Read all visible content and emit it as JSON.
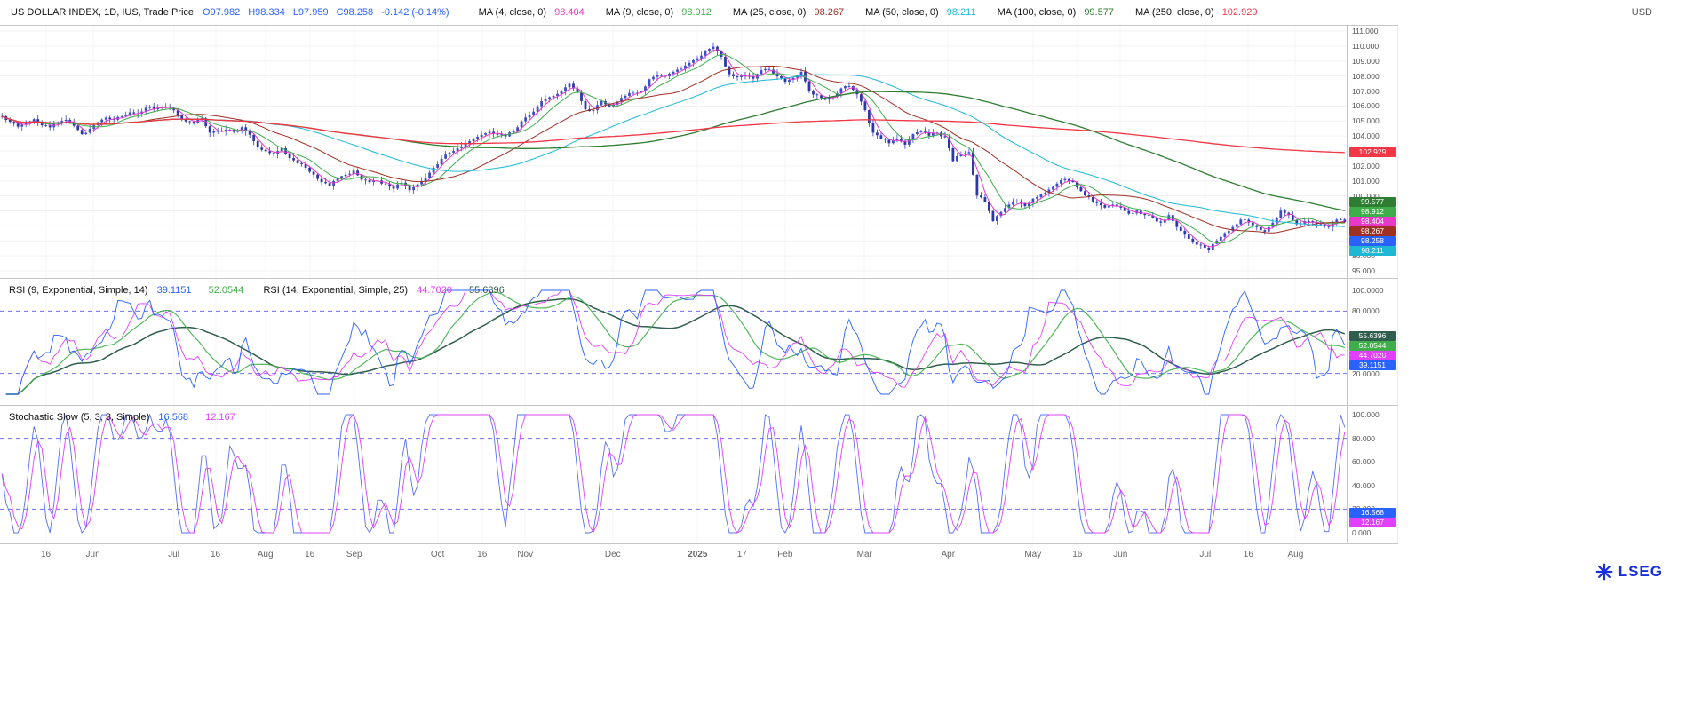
{
  "header": {
    "instrument": "US DOLLAR INDEX, 1D, IUS, Trade Price",
    "o": "O97.982",
    "h": "H98.334",
    "l": "L97.959",
    "c": "C98.258",
    "change": "-0.142 (-0.14%)",
    "ohlc_color": "#2962ff",
    "mas": [
      {
        "label": "MA (4, close, 0)",
        "value": "98.404",
        "color": "#e838c8"
      },
      {
        "label": "MA (9, close, 0)",
        "value": "98.912",
        "color": "#3fae4a"
      },
      {
        "label": "MA (25, close, 0)",
        "value": "98.267",
        "color": "#9e2f23"
      },
      {
        "label": "MA (50, close, 0)",
        "value": "98.211",
        "color": "#1fb8d4"
      },
      {
        "label": "MA (100, close, 0)",
        "value": "99.577",
        "color": "#2e7d32"
      },
      {
        "label": "MA (250, close, 0)",
        "value": "102.929",
        "color": "#f23645"
      }
    ],
    "currency": "USD"
  },
  "price_panel": {
    "y_ticks": [
      "111.000",
      "110.000",
      "109.000",
      "108.000",
      "107.000",
      "106.000",
      "105.000",
      "104.000",
      "103.000",
      "102.000",
      "101.000",
      "100.000",
      "99.000",
      "98.000",
      "97.000",
      "96.000",
      "95.000"
    ],
    "badges": [
      {
        "text": "102.929",
        "color": "#f23645",
        "name": "ma250-price-badge"
      },
      {
        "text": "99.577",
        "color": "#2e7d32",
        "name": "ma100-price-badge"
      },
      {
        "text": "98.912",
        "color": "#3fae4a",
        "name": "ma9-price-badge"
      },
      {
        "text": "98.404",
        "color": "#e838c8",
        "name": "ma4-price-badge"
      },
      {
        "text": "98.267",
        "color": "#9e2f23",
        "name": "ma25-price-badge"
      },
      {
        "text": "98.258",
        "color": "#2962ff",
        "name": "last-price-badge"
      },
      {
        "text": "98.211",
        "color": "#1fb8d4",
        "name": "ma50-price-badge"
      }
    ]
  },
  "rsi_panel": {
    "title1": "RSI (9, Exponential, Simple, 14)",
    "v1a": "39.1151",
    "v1b": "52.0544",
    "title2": "RSI (14, Exponential, Simple, 25)",
    "v2a": "44.7020",
    "v2b": "55.6396",
    "y_ticks": [
      "100.0000",
      "80.0000",
      "20.0000"
    ],
    "thresholds": [
      80,
      20
    ],
    "colors": {
      "rsi9": "#2962ff",
      "signal1": "#3fae4a",
      "rsi14": "#e040fb",
      "signal2": "#2f5d4e"
    },
    "badges": [
      {
        "text": "55.6396",
        "color": "#2f5d4e",
        "name": "rsi14-signal-badge"
      },
      {
        "text": "52.0544",
        "color": "#3fae4a",
        "name": "rsi9-signal-badge"
      },
      {
        "text": "44.7020",
        "color": "#e040fb",
        "name": "rsi14-badge"
      },
      {
        "text": "39.1151",
        "color": "#2962ff",
        "name": "rsi9-badge"
      }
    ]
  },
  "stoch_panel": {
    "title": "Stochastic Slow (5, 3, 3, Simple)",
    "v1": "16.568",
    "v2": "12.167",
    "y_ticks": [
      "100.000",
      "80.000",
      "60.000",
      "40.000",
      "20.000",
      "0.000"
    ],
    "thresholds": [
      80,
      20
    ],
    "colors": {
      "k": "#5470f0",
      "d": "#e040fb"
    },
    "badges": [
      {
        "text": "16.568",
        "color": "#2962ff",
        "name": "stoch-k-badge"
      },
      {
        "text": "12.167",
        "color": "#e040fb",
        "name": "stoch-d-badge"
      }
    ]
  },
  "x_axis": {
    "labels": [
      {
        "text": "16",
        "pos": 0.034
      },
      {
        "text": "Jun",
        "pos": 0.069
      },
      {
        "text": "Jul",
        "pos": 0.129
      },
      {
        "text": "16",
        "pos": 0.16
      },
      {
        "text": "Aug",
        "pos": 0.197
      },
      {
        "text": "16",
        "pos": 0.23
      },
      {
        "text": "Sep",
        "pos": 0.263
      },
      {
        "text": "Oct",
        "pos": 0.325
      },
      {
        "text": "16",
        "pos": 0.358
      },
      {
        "text": "Nov",
        "pos": 0.39
      },
      {
        "text": "Dec",
        "pos": 0.455
      },
      {
        "text": "2025",
        "pos": 0.518,
        "bold": true
      },
      {
        "text": "17",
        "pos": 0.551
      },
      {
        "text": "Feb",
        "pos": 0.583
      },
      {
        "text": "Mar",
        "pos": 0.642
      },
      {
        "text": "Apr",
        "pos": 0.704
      },
      {
        "text": "May",
        "pos": 0.767
      },
      {
        "text": "16",
        "pos": 0.8
      },
      {
        "text": "Jun",
        "pos": 0.832
      },
      {
        "text": "Jul",
        "pos": 0.895
      },
      {
        "text": "16",
        "pos": 0.927
      },
      {
        "text": "Aug",
        "pos": 0.962
      }
    ]
  },
  "footer": {
    "logo_text": "LSEG"
  },
  "chart_data": {
    "type": "candlestick",
    "title": "US DOLLAR INDEX, 1D, IUS, Trade Price",
    "timeframe": "1D",
    "x_span": "mid-May 2024 to mid-Aug 2025, daily bars",
    "ylim": [
      95,
      111
    ],
    "y_step": 1.0,
    "last_bar": {
      "open": 97.982,
      "high": 98.334,
      "low": 97.959,
      "close": 98.258,
      "change": -0.142,
      "change_pct": -0.14
    },
    "colors": {
      "candle_up": "#3d4ec9",
      "candle_down": "#2c37a8"
    },
    "closes": [
      105.32,
      104.95,
      104.62,
      104.85,
      105.12,
      104.72,
      104.58,
      104.92,
      105.08,
      104.68,
      104.12,
      104.48,
      104.92,
      105.22,
      105.08,
      105.32,
      105.58,
      105.48,
      105.88,
      105.78,
      105.92,
      105.88,
      105.42,
      104.98,
      104.88,
      105.18,
      104.22,
      104.32,
      104.42,
      104.28,
      104.58,
      104.08,
      103.22,
      102.98,
      102.78,
      103.18,
      102.52,
      102.18,
      101.88,
      101.42,
      100.92,
      100.68,
      101.18,
      101.42,
      101.68,
      101.08,
      100.92,
      101.02,
      100.78,
      100.48,
      100.88,
      100.38,
      100.78,
      101.22,
      101.88,
      102.48,
      102.88,
      103.18,
      103.48,
      103.78,
      104.08,
      104.28,
      104.08,
      103.98,
      104.32,
      104.98,
      105.42,
      105.98,
      106.48,
      106.68,
      106.98,
      107.48,
      106.88,
      105.78,
      105.72,
      106.32,
      105.98,
      106.28,
      106.68,
      106.88,
      106.98,
      107.78,
      108.08,
      107.98,
      108.28,
      108.48,
      108.88,
      109.18,
      109.68,
      109.96,
      109.28,
      108.12,
      107.92,
      108.02,
      107.82,
      108.38,
      108.42,
      107.98,
      107.62,
      107.88,
      108.28,
      106.98,
      106.72,
      106.42,
      106.62,
      107.18,
      107.32,
      106.78,
      105.72,
      104.22,
      103.82,
      103.52,
      103.82,
      103.42,
      104.12,
      104.32,
      104.02,
      104.22,
      103.92,
      102.32,
      102.82,
      102.92,
      100.02,
      99.62,
      98.32,
      98.92,
      99.42,
      99.62,
      99.32,
      99.82,
      100.12,
      100.42,
      100.82,
      101.12,
      100.92,
      100.32,
      99.92,
      99.52,
      99.22,
      99.42,
      99.22,
      98.82,
      99.02,
      98.72,
      98.52,
      98.22,
      98.72,
      97.92,
      97.42,
      96.92,
      96.72,
      96.42,
      97.02,
      97.52,
      97.92,
      98.42,
      98.22,
      97.92,
      97.62,
      98.22,
      99.02,
      98.72,
      98.12,
      98.32,
      98.22,
      98.12,
      97.92,
      98.42,
      98.26
    ],
    "moving_averages": [
      {
        "name": "MA (4, close, 0)",
        "period": 4,
        "value": 98.404,
        "color": "#e838c8"
      },
      {
        "name": "MA (9, close, 0)",
        "period": 9,
        "value": 98.912,
        "color": "#3fae4a"
      },
      {
        "name": "MA (25, close, 0)",
        "period": 25,
        "value": 98.267,
        "color": "#9e2f23"
      },
      {
        "name": "MA (50, close, 0)",
        "period": 50,
        "value": 98.211,
        "color": "#1fb8d4"
      },
      {
        "name": "MA (100, close, 0)",
        "period": 100,
        "value": 99.577,
        "color": "#2e7d32"
      },
      {
        "name": "MA (250, close, 0)",
        "period": 250,
        "value": 102.929,
        "color": "#f23645"
      }
    ],
    "indicators": [
      {
        "type": "RSI",
        "label": "RSI (9, Exponential, Simple, 14)",
        "current": [
          39.1151,
          52.0544
        ],
        "thresholds": [
          80,
          20
        ],
        "ylim": [
          0,
          100
        ]
      },
      {
        "type": "RSI",
        "label": "RSI (14, Exponential, Simple, 25)",
        "current": [
          44.702,
          55.6396
        ],
        "thresholds": [
          80,
          20
        ],
        "ylim": [
          0,
          100
        ]
      },
      {
        "type": "StochasticSlow",
        "label": "Stochastic Slow (5, 3, 3, Simple)",
        "current": [
          16.568,
          12.167
        ],
        "thresholds": [
          80,
          20
        ],
        "ylim": [
          0,
          100
        ]
      }
    ]
  }
}
